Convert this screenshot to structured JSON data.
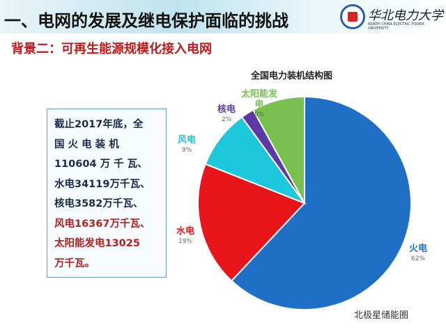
{
  "header": {
    "title": "一、电网的发展及继电保护面临的挑战",
    "university_cn": "华北电力大学",
    "university_en": "NORTH CHINA ELECTRIC POWER UNIVERSITY"
  },
  "subtitle": "背景二：可再生能源规模化接入电网",
  "textbox": {
    "lines": [
      {
        "text": "截止2017年底，全",
        "red": false
      },
      {
        "text": "国 火 电 装 机",
        "red": false
      },
      {
        "text": "110604 万 千 瓦、",
        "red": false
      },
      {
        "text": "水电34119万千瓦、",
        "red": false
      },
      {
        "text": "核电3582万千瓦、",
        "red": false
      },
      {
        "text": "风电16367万千瓦、",
        "red": true
      },
      {
        "text": "太阳能发电13025",
        "red": true
      },
      {
        "text": "万千瓦。",
        "red": true
      }
    ]
  },
  "chart_data": {
    "type": "pie",
    "title": "全国电力装机结构图",
    "categories": [
      "火电",
      "水电",
      "风电",
      "核电",
      "太阳能发电"
    ],
    "values": [
      62,
      19,
      9,
      2,
      8
    ],
    "labels": [
      "62%",
      "19%",
      "9%",
      "2%",
      "8%"
    ],
    "colors": [
      "#1f6fc6",
      "#e8161a",
      "#1ec8dc",
      "#5b3aa8",
      "#78c050"
    ],
    "start": "top",
    "direction": "clockwise"
  },
  "watermark": "北极星储能圈"
}
